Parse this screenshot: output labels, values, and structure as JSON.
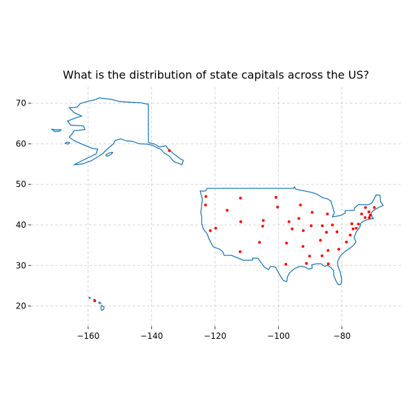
{
  "chart_data": {
    "type": "scatter",
    "title": "What is the distribution of state capitals across the US?",
    "xlabel": "",
    "ylabel": "",
    "xlim": [
      -178,
      -61
    ],
    "ylim": [
      15,
      74
    ],
    "xticks": [
      -160,
      -140,
      -120,
      -100,
      -80
    ],
    "yticks": [
      20,
      30,
      40,
      50,
      60,
      70
    ],
    "xtick_labels": [
      "−160",
      "−140",
      "−120",
      "−100",
      "−80"
    ],
    "ytick_labels": [
      "20",
      "30",
      "40",
      "50",
      "60",
      "70"
    ],
    "grid": true,
    "colors": {
      "outline": "#1f77b4",
      "capital": "#ff0000",
      "grid": "#c8c8c8"
    },
    "series": [
      {
        "marker": "point",
        "points": [
          [
            -86.3,
            32.4
          ],
          [
            -134.4,
            58.3
          ],
          [
            -112.1,
            33.4
          ],
          [
            -92.3,
            34.7
          ],
          [
            -121.5,
            38.6
          ],
          [
            -105.0,
            39.7
          ],
          [
            -72.7,
            41.8
          ],
          [
            -75.5,
            39.2
          ],
          [
            -84.3,
            30.4
          ],
          [
            -84.4,
            33.7
          ],
          [
            -157.9,
            21.3
          ],
          [
            -116.2,
            43.6
          ],
          [
            -89.7,
            39.8
          ],
          [
            -86.2,
            39.8
          ],
          [
            -93.6,
            41.6
          ],
          [
            -95.7,
            39.0
          ],
          [
            -84.9,
            38.2
          ],
          [
            -91.2,
            30.5
          ],
          [
            -69.8,
            44.3
          ],
          [
            -76.5,
            39.0
          ],
          [
            -71.1,
            42.4
          ],
          [
            -84.6,
            42.7
          ],
          [
            -93.1,
            44.9
          ],
          [
            -90.2,
            32.3
          ],
          [
            -92.2,
            38.6
          ],
          [
            -112.0,
            46.6
          ],
          [
            -96.7,
            40.8
          ],
          [
            -119.8,
            39.2
          ],
          [
            -71.5,
            43.2
          ],
          [
            -74.8,
            40.2
          ],
          [
            -106.0,
            35.7
          ],
          [
            -73.8,
            42.7
          ],
          [
            -78.6,
            35.8
          ],
          [
            -100.8,
            46.8
          ],
          [
            -83.0,
            40.0
          ],
          [
            -97.5,
            35.5
          ],
          [
            -123.0,
            44.9
          ],
          [
            -76.9,
            40.3
          ],
          [
            -71.4,
            41.8
          ],
          [
            -81.0,
            34.0
          ],
          [
            -100.3,
            44.4
          ],
          [
            -86.8,
            36.2
          ],
          [
            -97.7,
            30.3
          ],
          [
            -111.9,
            40.8
          ],
          [
            -72.6,
            44.3
          ],
          [
            -77.4,
            37.5
          ],
          [
            -122.9,
            47.0
          ],
          [
            -81.6,
            38.3
          ],
          [
            -89.4,
            43.1
          ],
          [
            -104.8,
            41.1
          ]
        ]
      }
    ],
    "outlines": [
      {
        "name": "contiguous-us",
        "coords": [
          [
            -123.5,
            48.3
          ],
          [
            -122.8,
            48.5
          ],
          [
            -122.5,
            49.0
          ],
          [
            -95.2,
            49.0
          ],
          [
            -95.0,
            49.4
          ],
          [
            -94.5,
            48.8
          ],
          [
            -92.0,
            48.4
          ],
          [
            -89.5,
            48.0
          ],
          [
            -88.0,
            47.6
          ],
          [
            -86.0,
            46.7
          ],
          [
            -84.5,
            46.4
          ],
          [
            -83.5,
            45.9
          ],
          [
            -82.4,
            43.0
          ],
          [
            -83.0,
            42.0
          ],
          [
            -80.5,
            42.3
          ],
          [
            -79.0,
            42.9
          ],
          [
            -79.0,
            43.5
          ],
          [
            -76.2,
            43.6
          ],
          [
            -76.0,
            44.2
          ],
          [
            -74.8,
            45.0
          ],
          [
            -71.5,
            45.0
          ],
          [
            -70.5,
            45.5
          ],
          [
            -69.2,
            47.4
          ],
          [
            -68.0,
            47.3
          ],
          [
            -67.8,
            45.7
          ],
          [
            -67.0,
            44.8
          ],
          [
            -68.7,
            44.2
          ],
          [
            -70.2,
            43.5
          ],
          [
            -70.8,
            42.9
          ],
          [
            -70.5,
            41.8
          ],
          [
            -70.0,
            41.6
          ],
          [
            -71.5,
            41.4
          ],
          [
            -72.0,
            41.3
          ],
          [
            -73.5,
            40.8
          ],
          [
            -74.0,
            40.5
          ],
          [
            -74.3,
            39.6
          ],
          [
            -74.9,
            38.9
          ],
          [
            -75.5,
            38.3
          ],
          [
            -76.0,
            37.2
          ],
          [
            -76.2,
            36.9
          ],
          [
            -75.6,
            35.8
          ],
          [
            -76.3,
            35.0
          ],
          [
            -77.8,
            34.1
          ],
          [
            -79.0,
            33.5
          ],
          [
            -80.6,
            32.3
          ],
          [
            -81.4,
            30.9
          ],
          [
            -81.3,
            29.9
          ],
          [
            -80.6,
            28.5
          ],
          [
            -80.1,
            26.5
          ],
          [
            -80.3,
            25.4
          ],
          [
            -81.0,
            25.2
          ],
          [
            -81.7,
            25.9
          ],
          [
            -82.6,
            27.5
          ],
          [
            -82.6,
            28.7
          ],
          [
            -83.5,
            29.5
          ],
          [
            -84.5,
            30.0
          ],
          [
            -85.5,
            29.8
          ],
          [
            -86.5,
            30.4
          ],
          [
            -88.0,
            30.4
          ],
          [
            -89.5,
            30.2
          ],
          [
            -89.4,
            29.3
          ],
          [
            -90.5,
            29.1
          ],
          [
            -91.6,
            29.6
          ],
          [
            -93.2,
            29.8
          ],
          [
            -94.8,
            29.3
          ],
          [
            -96.4,
            28.3
          ],
          [
            -97.2,
            27.2
          ],
          [
            -97.4,
            26.0
          ],
          [
            -98.5,
            26.3
          ],
          [
            -99.5,
            27.5
          ],
          [
            -101.0,
            29.6
          ],
          [
            -102.5,
            29.8
          ],
          [
            -103.2,
            29.0
          ],
          [
            -104.5,
            29.6
          ],
          [
            -106.5,
            31.8
          ],
          [
            -108.2,
            31.8
          ],
          [
            -108.2,
            31.3
          ],
          [
            -111.1,
            31.3
          ],
          [
            -114.8,
            32.5
          ],
          [
            -117.1,
            32.5
          ],
          [
            -117.6,
            33.4
          ],
          [
            -118.5,
            34.0
          ],
          [
            -120.6,
            34.6
          ],
          [
            -121.9,
            36.5
          ],
          [
            -122.5,
            37.8
          ],
          [
            -123.7,
            39.0
          ],
          [
            -124.2,
            40.3
          ],
          [
            -124.2,
            42.0
          ],
          [
            -124.5,
            43.0
          ],
          [
            -124.0,
            46.3
          ],
          [
            -124.7,
            48.4
          ],
          [
            -123.5,
            48.3
          ]
        ]
      },
      {
        "name": "alaska",
        "coords": [
          [
            -141.0,
            69.7
          ],
          [
            -143.5,
            70.1
          ],
          [
            -146.5,
            70.2
          ],
          [
            -150.0,
            70.4
          ],
          [
            -152.5,
            70.9
          ],
          [
            -156.5,
            71.3
          ],
          [
            -158.0,
            70.8
          ],
          [
            -160.0,
            70.5
          ],
          [
            -162.5,
            69.9
          ],
          [
            -163.5,
            69.0
          ],
          [
            -166.0,
            68.9
          ],
          [
            -164.5,
            67.7
          ],
          [
            -162.0,
            66.8
          ],
          [
            -163.5,
            66.5
          ],
          [
            -166.5,
            65.6
          ],
          [
            -165.5,
            64.6
          ],
          [
            -161.5,
            64.4
          ],
          [
            -161.0,
            63.5
          ],
          [
            -164.5,
            63.2
          ],
          [
            -165.0,
            62.5
          ],
          [
            -166.0,
            61.6
          ],
          [
            -164.5,
            60.8
          ],
          [
            -162.0,
            59.9
          ],
          [
            -158.5,
            58.8
          ],
          [
            -157.0,
            58.7
          ],
          [
            -157.5,
            57.5
          ],
          [
            -161.5,
            56.0
          ],
          [
            -164.5,
            54.8
          ],
          [
            -162.0,
            55.0
          ],
          [
            -159.0,
            55.8
          ],
          [
            -155.5,
            57.5
          ],
          [
            -154.0,
            58.7
          ],
          [
            -152.0,
            60.0
          ],
          [
            -151.5,
            60.8
          ],
          [
            -149.7,
            61.2
          ],
          [
            -148.0,
            60.7
          ],
          [
            -146.0,
            60.6
          ],
          [
            -144.0,
            60.0
          ],
          [
            -141.5,
            59.9
          ],
          [
            -140.0,
            59.7
          ],
          [
            -138.5,
            59.1
          ],
          [
            -137.0,
            58.6
          ],
          [
            -136.0,
            57.7
          ],
          [
            -134.5,
            57.0
          ],
          [
            -133.0,
            55.6
          ],
          [
            -131.5,
            55.2
          ],
          [
            -130.5,
            54.8
          ],
          [
            -130.0,
            55.9
          ],
          [
            -131.0,
            56.3
          ],
          [
            -133.0,
            57.5
          ],
          [
            -134.5,
            58.5
          ],
          [
            -135.5,
            59.5
          ],
          [
            -137.5,
            59.2
          ],
          [
            -139.0,
            59.9
          ],
          [
            -141.0,
            60.3
          ],
          [
            -141.0,
            69.7
          ]
        ]
      },
      {
        "name": "hawaii-big-island",
        "coords": [
          [
            -155.0,
            19.7
          ],
          [
            -155.8,
            20.2
          ],
          [
            -156.0,
            19.6
          ],
          [
            -155.8,
            18.95
          ],
          [
            -155.5,
            19.0
          ],
          [
            -155.0,
            19.4
          ],
          [
            -155.0,
            19.7
          ]
        ]
      },
      {
        "name": "hawaii-maui",
        "coords": [
          [
            -156.0,
            20.7
          ],
          [
            -156.4,
            21.0
          ],
          [
            -156.7,
            20.9
          ],
          [
            -156.5,
            20.6
          ],
          [
            -156.1,
            20.6
          ],
          [
            -156.0,
            20.7
          ]
        ]
      },
      {
        "name": "hawaii-oahu",
        "coords": [
          [
            -157.7,
            21.3
          ],
          [
            -158.0,
            21.7
          ],
          [
            -158.3,
            21.5
          ],
          [
            -158.1,
            21.3
          ],
          [
            -157.7,
            21.3
          ]
        ]
      },
      {
        "name": "hawaii-kauai",
        "coords": [
          [
            -159.3,
            22.0
          ],
          [
            -159.6,
            22.2
          ],
          [
            -159.8,
            22.0
          ],
          [
            -159.5,
            21.9
          ],
          [
            -159.3,
            22.0
          ]
        ]
      },
      {
        "name": "kodiak-island",
        "coords": [
          [
            -152.2,
            57.9
          ],
          [
            -153.5,
            57.7
          ],
          [
            -154.5,
            57.2
          ],
          [
            -153.9,
            56.9
          ],
          [
            -152.7,
            57.4
          ],
          [
            -152.2,
            57.9
          ]
        ]
      },
      {
        "name": "st-lawrence-island",
        "coords": [
          [
            -168.5,
            63.5
          ],
          [
            -170.0,
            63.4
          ],
          [
            -171.5,
            63.6
          ],
          [
            -170.5,
            63.0
          ],
          [
            -169.0,
            63.1
          ],
          [
            -168.5,
            63.5
          ]
        ]
      },
      {
        "name": "nunivak-island",
        "coords": [
          [
            -165.8,
            60.3
          ],
          [
            -166.8,
            60.4
          ],
          [
            -167.3,
            60.1
          ],
          [
            -166.3,
            59.9
          ],
          [
            -165.8,
            60.3
          ]
        ]
      }
    ]
  }
}
